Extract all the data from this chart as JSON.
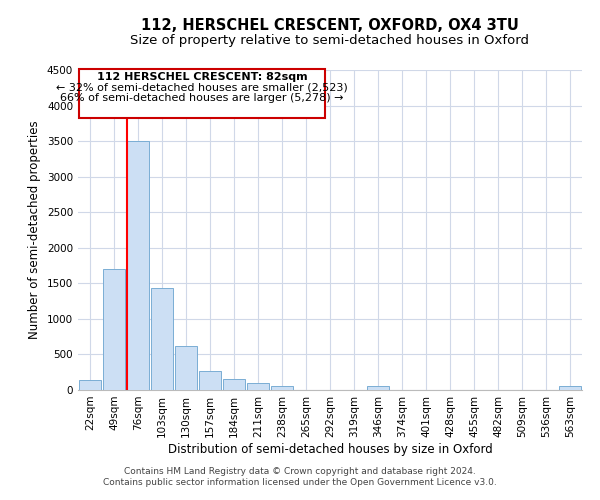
{
  "title": "112, HERSCHEL CRESCENT, OXFORD, OX4 3TU",
  "subtitle": "Size of property relative to semi-detached houses in Oxford",
  "xlabel": "Distribution of semi-detached houses by size in Oxford",
  "ylabel": "Number of semi-detached properties",
  "bar_labels": [
    "22sqm",
    "49sqm",
    "76sqm",
    "103sqm",
    "130sqm",
    "157sqm",
    "184sqm",
    "211sqm",
    "238sqm",
    "265sqm",
    "292sqm",
    "319sqm",
    "346sqm",
    "374sqm",
    "401sqm",
    "428sqm",
    "455sqm",
    "482sqm",
    "509sqm",
    "536sqm",
    "563sqm"
  ],
  "bar_values": [
    140,
    1700,
    3500,
    1440,
    620,
    270,
    160,
    100,
    50,
    0,
    0,
    0,
    50,
    0,
    0,
    0,
    0,
    0,
    0,
    0,
    50
  ],
  "bar_color": "#ccdff4",
  "bar_edge_color": "#7aadd4",
  "ylim": [
    0,
    4500
  ],
  "yticks": [
    0,
    500,
    1000,
    1500,
    2000,
    2500,
    3000,
    3500,
    4000,
    4500
  ],
  "red_line_bar_index": 2,
  "annotation_title": "112 HERSCHEL CRESCENT: 82sqm",
  "annotation_line1": "← 32% of semi-detached houses are smaller (2,523)",
  "annotation_line2": "66% of semi-detached houses are larger (5,278) →",
  "annotation_box_color": "#ffffff",
  "annotation_box_edge": "#cc0000",
  "footer1": "Contains HM Land Registry data © Crown copyright and database right 2024.",
  "footer2": "Contains public sector information licensed under the Open Government Licence v3.0.",
  "background_color": "#ffffff",
  "grid_color": "#d0d8e8",
  "title_fontsize": 10.5,
  "subtitle_fontsize": 9.5,
  "axis_label_fontsize": 8.5,
  "tick_fontsize": 7.5,
  "annotation_fontsize": 8,
  "footer_fontsize": 6.5
}
